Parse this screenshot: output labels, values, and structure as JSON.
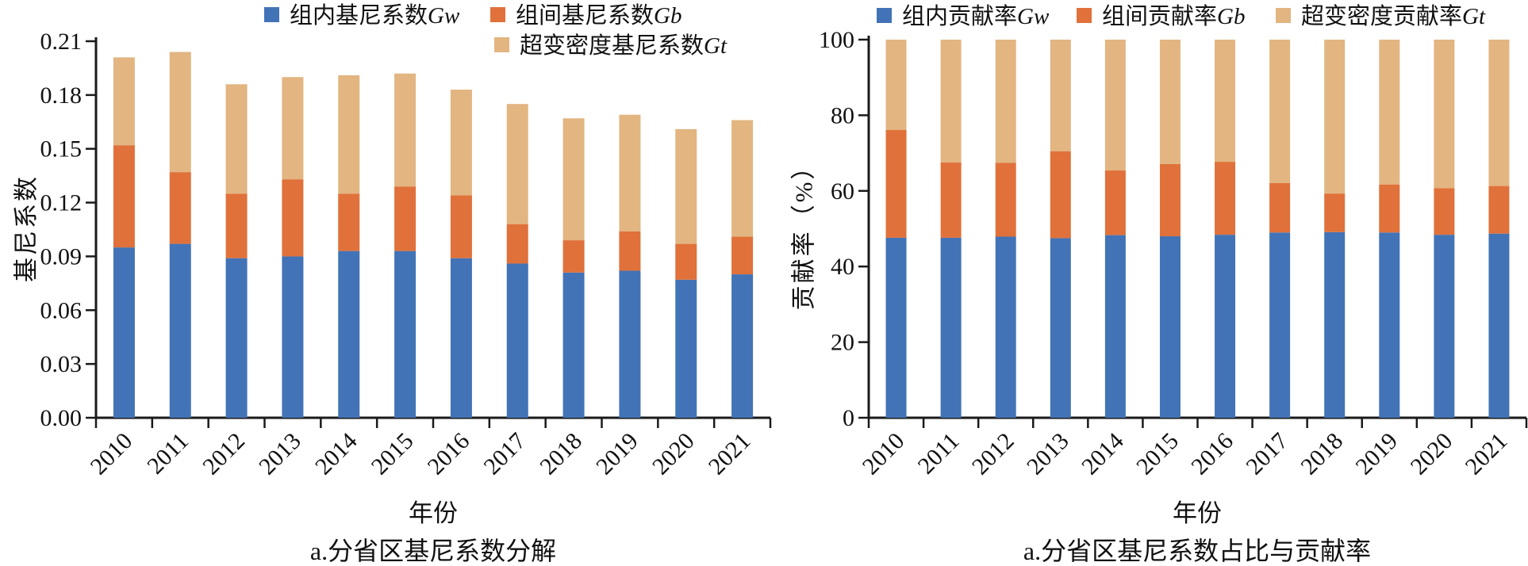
{
  "colors": {
    "blue": "#4273B6",
    "orange": "#E0713A",
    "tan": "#E2B581",
    "axis": "#1a1a1a",
    "background": "#ffffff"
  },
  "chart_data": [
    {
      "id": "gini-decomposition",
      "type": "bar",
      "stacked": true,
      "title": "a.分省区基尼系数分解",
      "xlabel": "年份",
      "ylabel": "基尼系数",
      "ylim": [
        0,
        0.21
      ],
      "yticks": [
        0,
        0.03,
        0.06,
        0.09,
        0.12,
        0.15,
        0.18,
        0.21
      ],
      "ytick_labels": [
        "0.00",
        "0.03",
        "0.06",
        "0.09",
        "0.12",
        "0.15",
        "0.18",
        "0.21"
      ],
      "grid": false,
      "legend_position": "top",
      "categories": [
        "2010",
        "2011",
        "2012",
        "2013",
        "2014",
        "2015",
        "2016",
        "2017",
        "2018",
        "2019",
        "2020",
        "2021"
      ],
      "series": [
        {
          "name": "组内基尼系数Gw",
          "legend_text": "组内基尼系数",
          "legend_suffix": "Gw",
          "color": "blue",
          "values": [
            0.095,
            0.097,
            0.089,
            0.09,
            0.093,
            0.093,
            0.089,
            0.086,
            0.081,
            0.082,
            0.077,
            0.08
          ]
        },
        {
          "name": "组间基尼系数Gb",
          "legend_text": "组间基尼系数",
          "legend_suffix": "Gb",
          "color": "orange",
          "values": [
            0.057,
            0.04,
            0.036,
            0.043,
            0.032,
            0.036,
            0.035,
            0.022,
            0.018,
            0.022,
            0.02,
            0.021
          ]
        },
        {
          "name": "超变密度基尼系数Gt",
          "legend_text": "超变密度基尼系数",
          "legend_suffix": "Gt",
          "color": "tan",
          "values": [
            0.049,
            0.067,
            0.061,
            0.057,
            0.066,
            0.063,
            0.059,
            0.067,
            0.068,
            0.065,
            0.064,
            0.065
          ]
        }
      ]
    },
    {
      "id": "gini-contribution-rate",
      "type": "bar",
      "stacked": true,
      "title": "a.分省区基尼系数占比与贡献率",
      "xlabel": "年份",
      "ylabel": "贡献率（%）",
      "ylim": [
        0,
        100
      ],
      "yticks": [
        0,
        20,
        40,
        60,
        80,
        100
      ],
      "ytick_labels": [
        "0",
        "20",
        "40",
        "60",
        "80",
        "100"
      ],
      "grid": false,
      "legend_position": "top",
      "categories": [
        "2010",
        "2011",
        "2012",
        "2013",
        "2014",
        "2015",
        "2016",
        "2017",
        "2018",
        "2019",
        "2020",
        "2021"
      ],
      "series": [
        {
          "name": "组内贡献率Gw",
          "legend_text": "组内贡献率",
          "legend_suffix": "Gw",
          "color": "blue",
          "values": [
            47.6,
            47.6,
            47.9,
            47.5,
            48.3,
            48.0,
            48.4,
            49.0,
            49.1,
            49.0,
            48.4,
            48.7
          ]
        },
        {
          "name": "组间贡献率Gb",
          "legend_text": "组间贡献率",
          "legend_suffix": "Gb",
          "color": "orange",
          "values": [
            28.5,
            19.9,
            19.5,
            23.0,
            17.1,
            19.1,
            19.3,
            13.1,
            10.2,
            12.7,
            12.3,
            12.6
          ]
        },
        {
          "name": "超变密度贡献率Gt",
          "legend_text": "超变密度贡献率",
          "legend_suffix": "Gt",
          "color": "tan",
          "values": [
            23.9,
            32.5,
            32.6,
            29.5,
            34.6,
            32.9,
            32.3,
            37.9,
            40.7,
            38.3,
            39.3,
            38.7
          ]
        }
      ]
    }
  ]
}
